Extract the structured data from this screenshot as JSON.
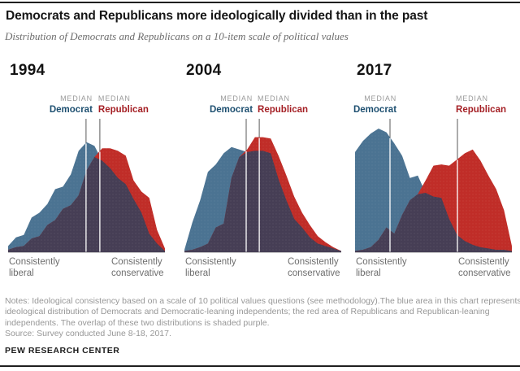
{
  "header": {
    "title": "Democrats and Republicans more ideologically divided than in the past",
    "subtitle": "Distribution of Democrats and Republicans on a 10-item scale of political values"
  },
  "median_legend": {
    "label": "MEDIAN",
    "dem": "Democrat",
    "rep": "Republican"
  },
  "colors": {
    "dem_fill": "#4b7392",
    "rep_fill": "#c02d28",
    "overlap_fill": "#463e55",
    "dem_label": "#1d4f70",
    "rep_label": "#a41f24",
    "median_tick": "#595959",
    "median_line_inner": "#ffffff",
    "baseline": "#c9c9c9",
    "dot_texture": "rgba(255,255,255,0.16)"
  },
  "chart_data": [
    {
      "year": "1994",
      "type": "area",
      "x_axis_left_label_lines": [
        "Consistently",
        "liberal"
      ],
      "x_axis_right_label_lines": [
        "Consistently",
        "conservative"
      ],
      "overlap_note": "overlap of the two distributions shaded purple",
      "series": [
        {
          "name": "Democrat",
          "values": [
            0.05,
            0.12,
            0.14,
            0.28,
            0.32,
            0.39,
            0.51,
            0.53,
            0.63,
            0.82,
            0.89,
            0.86,
            0.74,
            0.68,
            0.6,
            0.55,
            0.43,
            0.32,
            0.15,
            0.07,
            0.01
          ],
          "median_frac": 0.497
        },
        {
          "name": "Republican",
          "values": [
            0.02,
            0.04,
            0.05,
            0.11,
            0.13,
            0.22,
            0.26,
            0.35,
            0.38,
            0.46,
            0.66,
            0.77,
            0.84,
            0.84,
            0.82,
            0.78,
            0.58,
            0.49,
            0.44,
            0.18,
            0.03
          ],
          "median_frac": 0.585
        }
      ]
    },
    {
      "year": "2004",
      "type": "area",
      "x_axis_left_label_lines": [
        "Consistently",
        "liberal"
      ],
      "x_axis_right_label_lines": [
        "Consistently",
        "conservative"
      ],
      "overlap_note": "overlap of the two distributions shaded purple",
      "series": [
        {
          "name": "Democrat",
          "values": [
            0.02,
            0.24,
            0.42,
            0.65,
            0.71,
            0.8,
            0.85,
            0.83,
            0.81,
            0.82,
            0.82,
            0.8,
            0.59,
            0.42,
            0.27,
            0.2,
            0.12,
            0.07,
            0.05,
            0.03,
            0.01
          ],
          "median_frac": 0.394
        },
        {
          "name": "Republican",
          "values": [
            0.01,
            0.02,
            0.04,
            0.07,
            0.2,
            0.23,
            0.6,
            0.77,
            0.83,
            0.93,
            0.93,
            0.92,
            0.78,
            0.62,
            0.45,
            0.32,
            0.22,
            0.13,
            0.08,
            0.04,
            0.01
          ],
          "median_frac": 0.477
        }
      ]
    },
    {
      "year": "2017",
      "type": "area",
      "x_axis_left_label_lines": [
        "Consistently",
        "liberal"
      ],
      "x_axis_right_label_lines": [
        "Consistently",
        "conservative"
      ],
      "overlap_note": "overlap of the two distributions shaded purple",
      "series": [
        {
          "name": "Democrat",
          "values": [
            0.81,
            0.9,
            0.96,
            1.0,
            0.97,
            0.88,
            0.78,
            0.6,
            0.62,
            0.48,
            0.45,
            0.44,
            0.27,
            0.14,
            0.09,
            0.06,
            0.04,
            0.03,
            0.02,
            0.02,
            0.01
          ],
          "median_frac": 0.223
        },
        {
          "name": "Republican",
          "values": [
            0.01,
            0.02,
            0.04,
            0.1,
            0.2,
            0.15,
            0.3,
            0.42,
            0.47,
            0.58,
            0.7,
            0.71,
            0.7,
            0.75,
            0.8,
            0.83,
            0.74,
            0.62,
            0.51,
            0.34,
            0.05
          ],
          "median_frac": 0.653
        }
      ]
    }
  ],
  "notes": {
    "lines": [
      "Notes: Ideological consistency based on a scale of 10 political values questions (see methodology).The blue area in this chart represents the",
      "ideological distribution of Democrats and Democratic-leaning independents; the red area of Republicans and Republican-leaning",
      "independents. The overlap of these two distributions is shaded purple."
    ],
    "source": "Source: Survey conducted June 8-18, 2017.",
    "footer": "PEW RESEARCH CENTER"
  }
}
